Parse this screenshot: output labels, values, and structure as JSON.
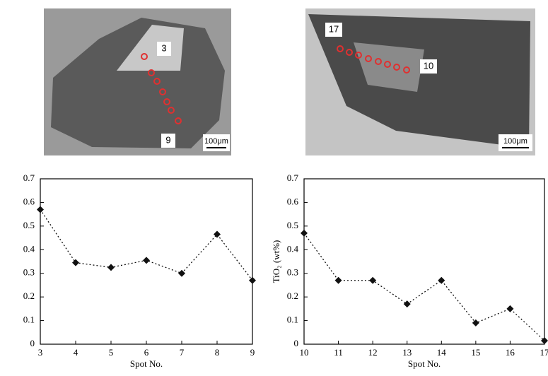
{
  "images": [
    {
      "labels": [
        "3",
        "9"
      ],
      "scale_bar": "100μm"
    },
    {
      "labels": [
        "17",
        "10"
      ],
      "scale_bar": "100μm"
    }
  ],
  "chart_data": [
    {
      "type": "line",
      "x_label": "Spot No.",
      "x": [
        3,
        4,
        5,
        6,
        7,
        8,
        9
      ],
      "values": [
        0.57,
        0.345,
        0.325,
        0.355,
        0.3,
        0.465,
        0.27
      ],
      "xlim": [
        3,
        9
      ],
      "xticks": [
        3,
        4,
        5,
        6,
        7,
        8,
        9
      ],
      "ylim": [
        0,
        0.7
      ],
      "yticks": [
        0,
        0.1,
        0.2,
        0.3,
        0.4,
        0.5,
        0.6,
        0.7
      ],
      "color": "#111111"
    },
    {
      "type": "line",
      "x_label": "Spot No.",
      "y_label": "TiO₂ (wt%)",
      "x": [
        10,
        11,
        12,
        13,
        14,
        15,
        16,
        17
      ],
      "values": [
        0.47,
        0.27,
        0.27,
        0.17,
        0.27,
        0.09,
        0.15,
        0.015
      ],
      "xlim": [
        10,
        17
      ],
      "xticks": [
        10,
        11,
        12,
        13,
        14,
        15,
        16,
        17
      ],
      "ylim": [
        0,
        0.7
      ],
      "yticks": [
        0,
        0.1,
        0.2,
        0.3,
        0.4,
        0.5,
        0.6,
        0.7
      ],
      "color": "#111111"
    }
  ]
}
